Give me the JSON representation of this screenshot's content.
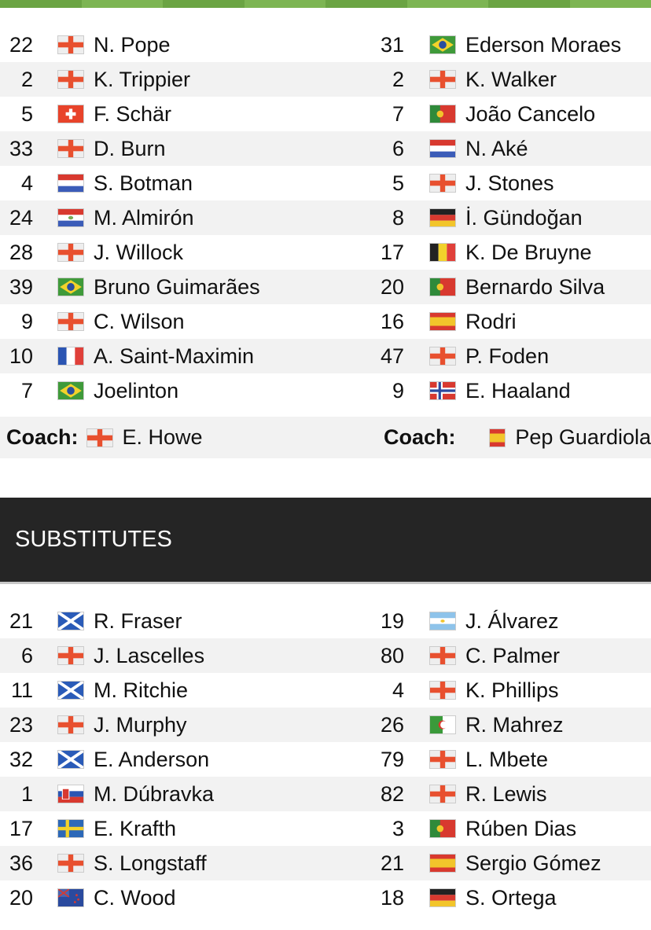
{
  "colors": {
    "stripe": "#6ba443",
    "band": "#252525",
    "alt_row": "#f2f2f2"
  },
  "lineups": {
    "home": [
      {
        "num": "22",
        "flag": "eng",
        "name": "N. Pope"
      },
      {
        "num": "2",
        "flag": "eng",
        "name": "K. Trippier"
      },
      {
        "num": "5",
        "flag": "sui",
        "name": "F. Schär"
      },
      {
        "num": "33",
        "flag": "eng",
        "name": "D. Burn"
      },
      {
        "num": "4",
        "flag": "ned",
        "name": "S. Botman"
      },
      {
        "num": "24",
        "flag": "par",
        "name": "M. Almirón"
      },
      {
        "num": "28",
        "flag": "eng",
        "name": "J. Willock"
      },
      {
        "num": "39",
        "flag": "bra",
        "name": "Bruno Guimarães"
      },
      {
        "num": "9",
        "flag": "eng",
        "name": "C. Wilson"
      },
      {
        "num": "10",
        "flag": "fra",
        "name": "A. Saint-Maximin"
      },
      {
        "num": "7",
        "flag": "bra",
        "name": "Joelinton"
      }
    ],
    "away": [
      {
        "num": "31",
        "flag": "bra",
        "name": "Ederson Moraes"
      },
      {
        "num": "2",
        "flag": "eng",
        "name": "K. Walker"
      },
      {
        "num": "7",
        "flag": "por",
        "name": "João Cancelo"
      },
      {
        "num": "6",
        "flag": "ned",
        "name": "N. Aké"
      },
      {
        "num": "5",
        "flag": "eng",
        "name": "J. Stones"
      },
      {
        "num": "8",
        "flag": "ger",
        "name": "İ. Gündoğan"
      },
      {
        "num": "17",
        "flag": "bel",
        "name": "K. De Bruyne"
      },
      {
        "num": "20",
        "flag": "por",
        "name": "Bernardo Silva"
      },
      {
        "num": "16",
        "flag": "esp",
        "name": "Rodri"
      },
      {
        "num": "47",
        "flag": "eng",
        "name": "P. Foden"
      },
      {
        "num": "9",
        "flag": "nor",
        "name": "E. Haaland"
      }
    ]
  },
  "coach_label": "Coach:",
  "coaches": {
    "home": {
      "flag": "eng",
      "name": "E. Howe"
    },
    "away": {
      "flag": "esp",
      "name": "Pep Guardiola"
    }
  },
  "substitutes_title": "SUBSTITUTES",
  "substitutes": {
    "home": [
      {
        "num": "21",
        "flag": "sco",
        "name": "R. Fraser"
      },
      {
        "num": "6",
        "flag": "eng",
        "name": "J. Lascelles"
      },
      {
        "num": "11",
        "flag": "sco",
        "name": "M. Ritchie"
      },
      {
        "num": "23",
        "flag": "eng",
        "name": "J. Murphy"
      },
      {
        "num": "32",
        "flag": "sco",
        "name": "E. Anderson"
      },
      {
        "num": "1",
        "flag": "svk",
        "name": "M. Dúbravka"
      },
      {
        "num": "17",
        "flag": "swe",
        "name": "E. Krafth"
      },
      {
        "num": "36",
        "flag": "eng",
        "name": "S. Longstaff"
      },
      {
        "num": "20",
        "flag": "nzl",
        "name": "C. Wood"
      }
    ],
    "away": [
      {
        "num": "19",
        "flag": "arg",
        "name": "J. Álvarez"
      },
      {
        "num": "80",
        "flag": "eng",
        "name": "C. Palmer"
      },
      {
        "num": "4",
        "flag": "eng",
        "name": "K. Phillips"
      },
      {
        "num": "26",
        "flag": "alg",
        "name": "R. Mahrez"
      },
      {
        "num": "79",
        "flag": "eng",
        "name": "L. Mbete"
      },
      {
        "num": "82",
        "flag": "eng",
        "name": "R. Lewis"
      },
      {
        "num": "3",
        "flag": "por",
        "name": "Rúben Dias"
      },
      {
        "num": "21",
        "flag": "esp",
        "name": "Sergio Gómez"
      },
      {
        "num": "18",
        "flag": "ger",
        "name": "S. Ortega"
      }
    ]
  }
}
